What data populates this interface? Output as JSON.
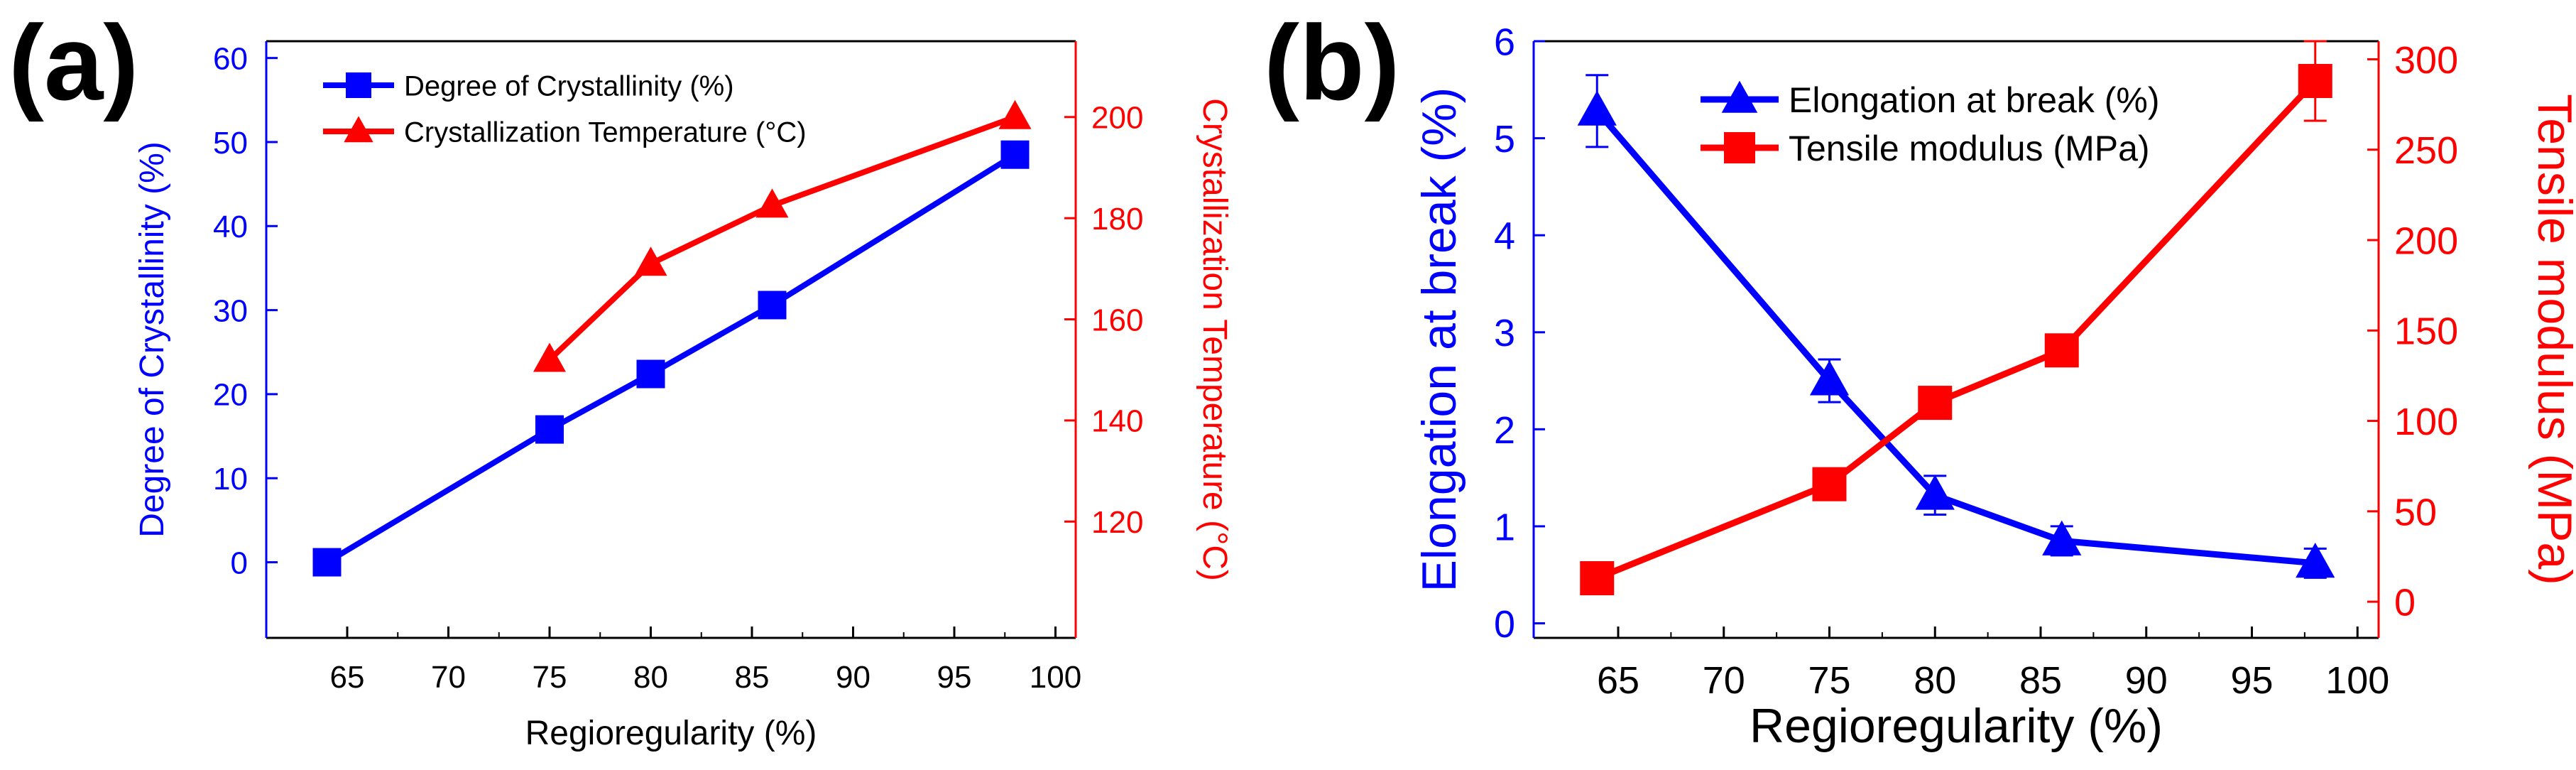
{
  "panels": [
    {
      "label": "(a)"
    },
    {
      "label": "(b)"
    }
  ],
  "chart_data": [
    {
      "panel": "(a)",
      "type": "line",
      "xlabel": "Regioregularity (%)",
      "xlim": [
        61,
        101
      ],
      "xticks": [
        65,
        70,
        75,
        80,
        85,
        90,
        95,
        100
      ],
      "ylabel_left": "Degree of Crystallinity (%)",
      "ylim_left": [
        -9,
        62
      ],
      "yticks_left": [
        0,
        10,
        20,
        30,
        40,
        50,
        60
      ],
      "ylabel_right": "Crystallization Temperature (°C)",
      "ylim_right": [
        97,
        215
      ],
      "yticks_right": [
        120,
        140,
        160,
        180,
        200
      ],
      "legend_position": "top-left",
      "series": [
        {
          "name": "Degree of Crystallinity (%)",
          "axis": "left",
          "color": "#0000ff",
          "marker": "square",
          "x": [
            64,
            75,
            80,
            86,
            98
          ],
          "y": [
            0,
            15.8,
            22.4,
            30.6,
            48.5
          ]
        },
        {
          "name": "Crystallization Temperature (°C)",
          "axis": "right",
          "color": "#ff0000",
          "marker": "triangle",
          "x": [
            75,
            80,
            86,
            98
          ],
          "y": [
            152,
            171,
            182.5,
            200
          ]
        }
      ]
    },
    {
      "panel": "(b)",
      "type": "line",
      "xlabel": "Regioregularity (%)",
      "xlim": [
        61,
        101
      ],
      "xticks": [
        65,
        70,
        75,
        80,
        85,
        90,
        95,
        100
      ],
      "ylabel_left": "Elongation at break (%)",
      "ylim_left": [
        -0.15,
        6
      ],
      "yticks_left": [
        0,
        1,
        2,
        3,
        4,
        5,
        6
      ],
      "ylabel_right": "Tensile modulus (MPa)",
      "ylim_right": [
        -20,
        310
      ],
      "yticks_right": [
        0,
        50,
        100,
        150,
        200,
        250,
        300
      ],
      "legend_position": "top-center",
      "series": [
        {
          "name": "Elongation at break (%)",
          "axis": "left",
          "color": "#0000ff",
          "marker": "triangle",
          "x": [
            64,
            75,
            80,
            86,
            98
          ],
          "y": [
            5.28,
            2.5,
            1.32,
            0.85,
            0.62
          ],
          "yerr": [
            0.37,
            0.22,
            0.2,
            0.15,
            0.15
          ]
        },
        {
          "name": "Tensile modulus (MPa)",
          "axis": "right",
          "color": "#ff0000",
          "marker": "square",
          "x": [
            64,
            75,
            80,
            86,
            98
          ],
          "y": [
            13,
            65,
            110,
            139,
            288
          ],
          "yerr": [
            4,
            8,
            5,
            4,
            22
          ]
        }
      ]
    }
  ]
}
